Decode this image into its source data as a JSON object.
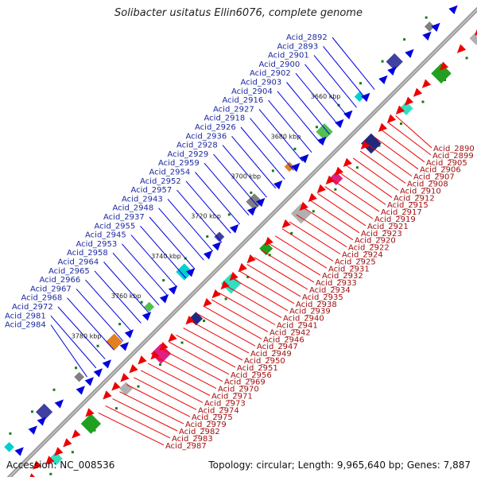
{
  "title": "Solibacter usitatus Ellin6076, complete genome",
  "footer": {
    "accession": "Accession: NC_008536",
    "summary": "Topology: circular; Length: 9,965,640 bp; Genes: 7,887"
  },
  "colors": {
    "forward_strand": "#0000dd",
    "reverse_strand": "#ee0000",
    "backbone": "#808080",
    "tick_dot": "#1a7a1a"
  },
  "scale_labels": [
    "3660 kbp",
    "3680 kbp",
    "3700 kbp",
    "3720 kbp",
    "3740 kbp",
    "3760 kbp",
    "3780 kbp"
  ],
  "forward_genes": [
    "Acid_2892",
    "Acid_2893",
    "Acid_2901",
    "Acid_2900",
    "Acid_2902",
    "Acid_2903",
    "Acid_2904",
    "Acid_2916",
    "Acid_2927",
    "Acid_2918",
    "Acid_2926",
    "Acid_2936",
    "Acid_2928",
    "Acid_2929",
    "Acid_2959",
    "Acid_2954",
    "Acid_2952",
    "Acid_2957",
    "Acid_2943",
    "Acid_2948",
    "Acid_2937",
    "Acid_2955",
    "Acid_2945",
    "Acid_2953",
    "Acid_2958",
    "Acid_2964",
    "Acid_2965",
    "Acid_2966",
    "Acid_2967",
    "Acid_2968",
    "Acid_2972",
    "Acid_2981",
    "Acid_2984"
  ],
  "reverse_genes": [
    "Acid_2890",
    "Acid_2899",
    "Acid_2905",
    "Acid_2906",
    "Acid_2907",
    "Acid_2908",
    "Acid_2910",
    "Acid_2912",
    "Acid_2915",
    "Acid_2917",
    "Acid_2919",
    "Acid_2921",
    "Acid_2923",
    "Acid_2920",
    "Acid_2922",
    "Acid_2924",
    "Acid_2925",
    "Acid_2931",
    "Acid_2932",
    "Acid_2933",
    "Acid_2934",
    "Acid_2935",
    "Acid_2938",
    "Acid_2939",
    "Acid_2940",
    "Acid_2941",
    "Acid_2942",
    "Acid_2946",
    "Acid_2947",
    "Acid_2949",
    "Acid_2950",
    "Acid_2951",
    "Acid_2956",
    "Acid_2969",
    "Acid_2970",
    "Acid_2971",
    "Acid_2973",
    "Acid_2974",
    "Acid_2975",
    "Acid_2979",
    "Acid_2982",
    "Acid_2983",
    "Acid_2987"
  ]
}
